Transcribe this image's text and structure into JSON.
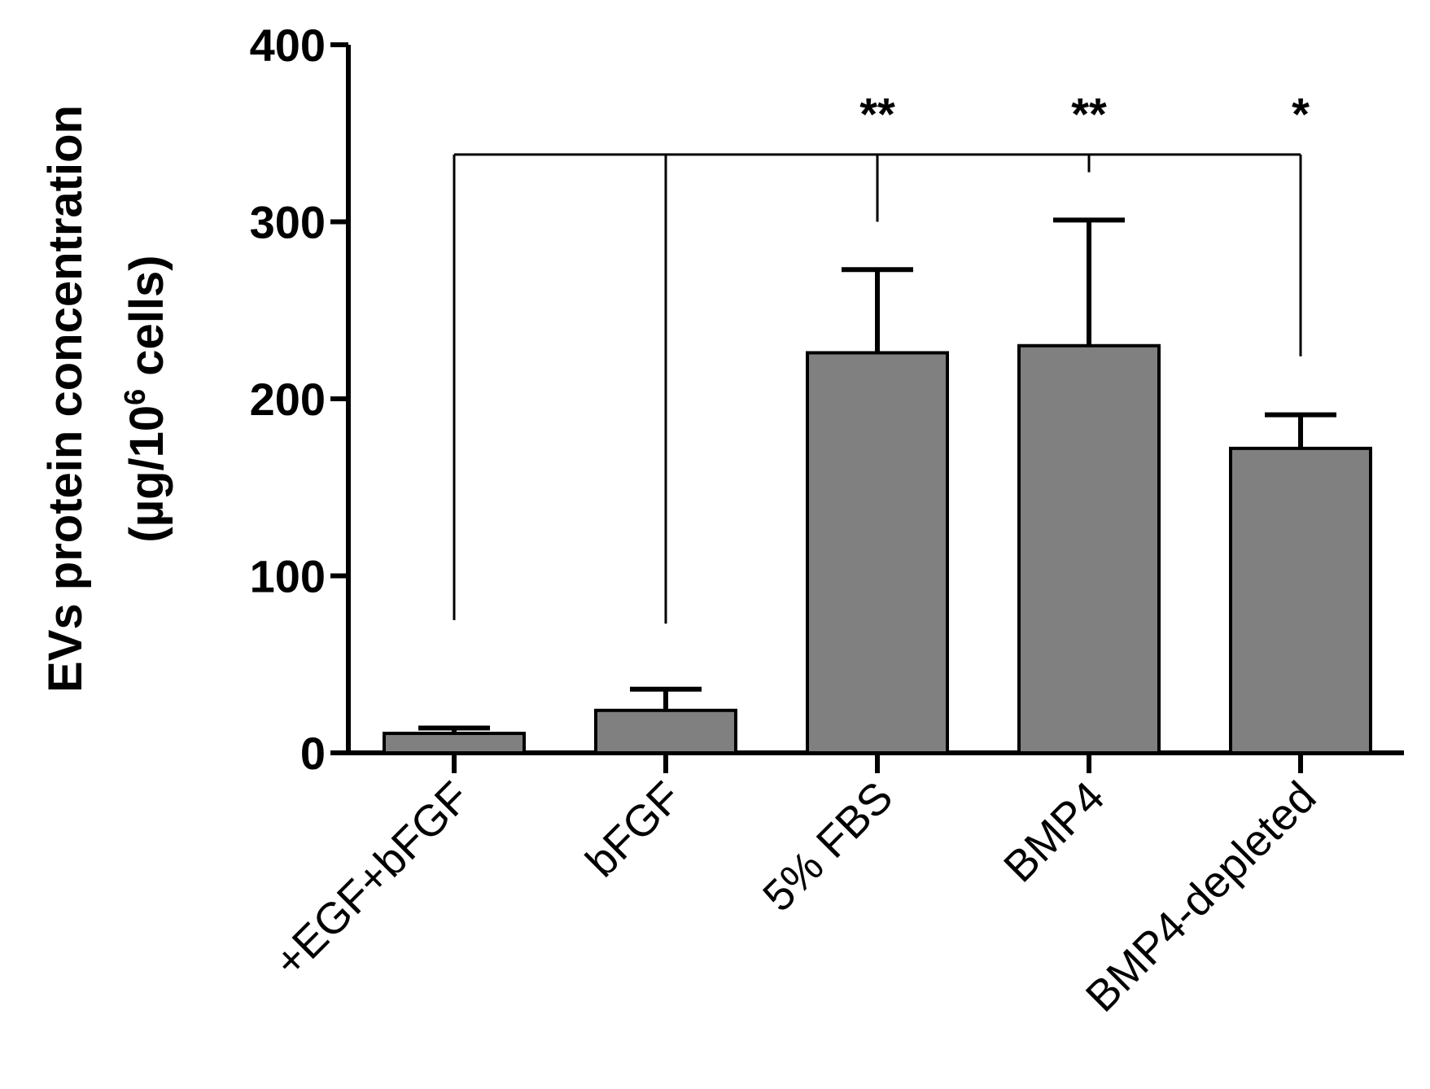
{
  "chart_data": {
    "type": "bar",
    "title": "",
    "ylabel_line1": "EVs protein concentration",
    "ylabel_line2_prefix": "(µg/10",
    "ylabel_line2_sup": "6",
    "ylabel_line2_suffix": " cells)",
    "xlabel": "",
    "ylim": [
      0,
      400
    ],
    "yticks": [
      0,
      100,
      200,
      300,
      400
    ],
    "ytick_labels": [
      "0",
      "100",
      "200",
      "300",
      "400"
    ],
    "categories": [
      "+EGF+bFGF",
      "bFGF",
      "5% FBS",
      "BMP4",
      "BMP4-depleted"
    ],
    "values": [
      11,
      24,
      226,
      230,
      172
    ],
    "errors": [
      3,
      12,
      47,
      71,
      19
    ],
    "bar_color": "#808080",
    "significance": {
      "control": "+EGF+bFGF",
      "labels": [
        "",
        "",
        "**",
        "**",
        "*"
      ]
    },
    "grid": false,
    "legend": "none"
  }
}
